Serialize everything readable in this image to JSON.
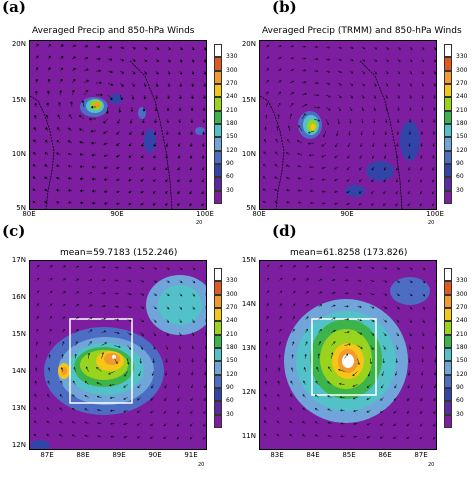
{
  "panels": {
    "a": {
      "letter": "(a)",
      "title": "Averaged Precip and 850-hPa Winds",
      "yticks": [
        "20N",
        "15N",
        "10N",
        "5N"
      ],
      "xticks": [
        "80E",
        "90E",
        "100E"
      ]
    },
    "b": {
      "letter": "(b)",
      "title": "Averaged Precip (TRMM) and 850-hPa Winds",
      "yticks": [
        "20N",
        "15N",
        "10N",
        "5N"
      ],
      "xticks": [
        "80E",
        "90E",
        "100E"
      ]
    },
    "c": {
      "letter": "(c)",
      "title": "mean=59.7183 (152.246)",
      "yticks": [
        "17N",
        "16N",
        "15N",
        "14N",
        "13N",
        "12N"
      ],
      "xticks": [
        "87E",
        "88E",
        "89E",
        "90E",
        "91E"
      ]
    },
    "d": {
      "letter": "(d)",
      "title": "mean=61.8258 (173.826)",
      "yticks": [
        "15N",
        "14N",
        "13N",
        "12N",
        "11N"
      ],
      "xticks": [
        "83E",
        "84E",
        "85E",
        "86E",
        "87E"
      ]
    }
  },
  "colorbar": {
    "labels": [
      "330",
      "300",
      "270",
      "240",
      "210",
      "180",
      "150",
      "120",
      "90",
      "60",
      "30"
    ],
    "colors": [
      "#ffffff",
      "#e05a20",
      "#f29a2e",
      "#f5c518",
      "#9ad31e",
      "#3cb44b",
      "#53c2c8",
      "#6fa5d8",
      "#4d6cc4",
      "#3344a8",
      "#5a2aa0",
      "#7d1ea0"
    ]
  },
  "reference_vector": {
    "label": "20"
  }
}
